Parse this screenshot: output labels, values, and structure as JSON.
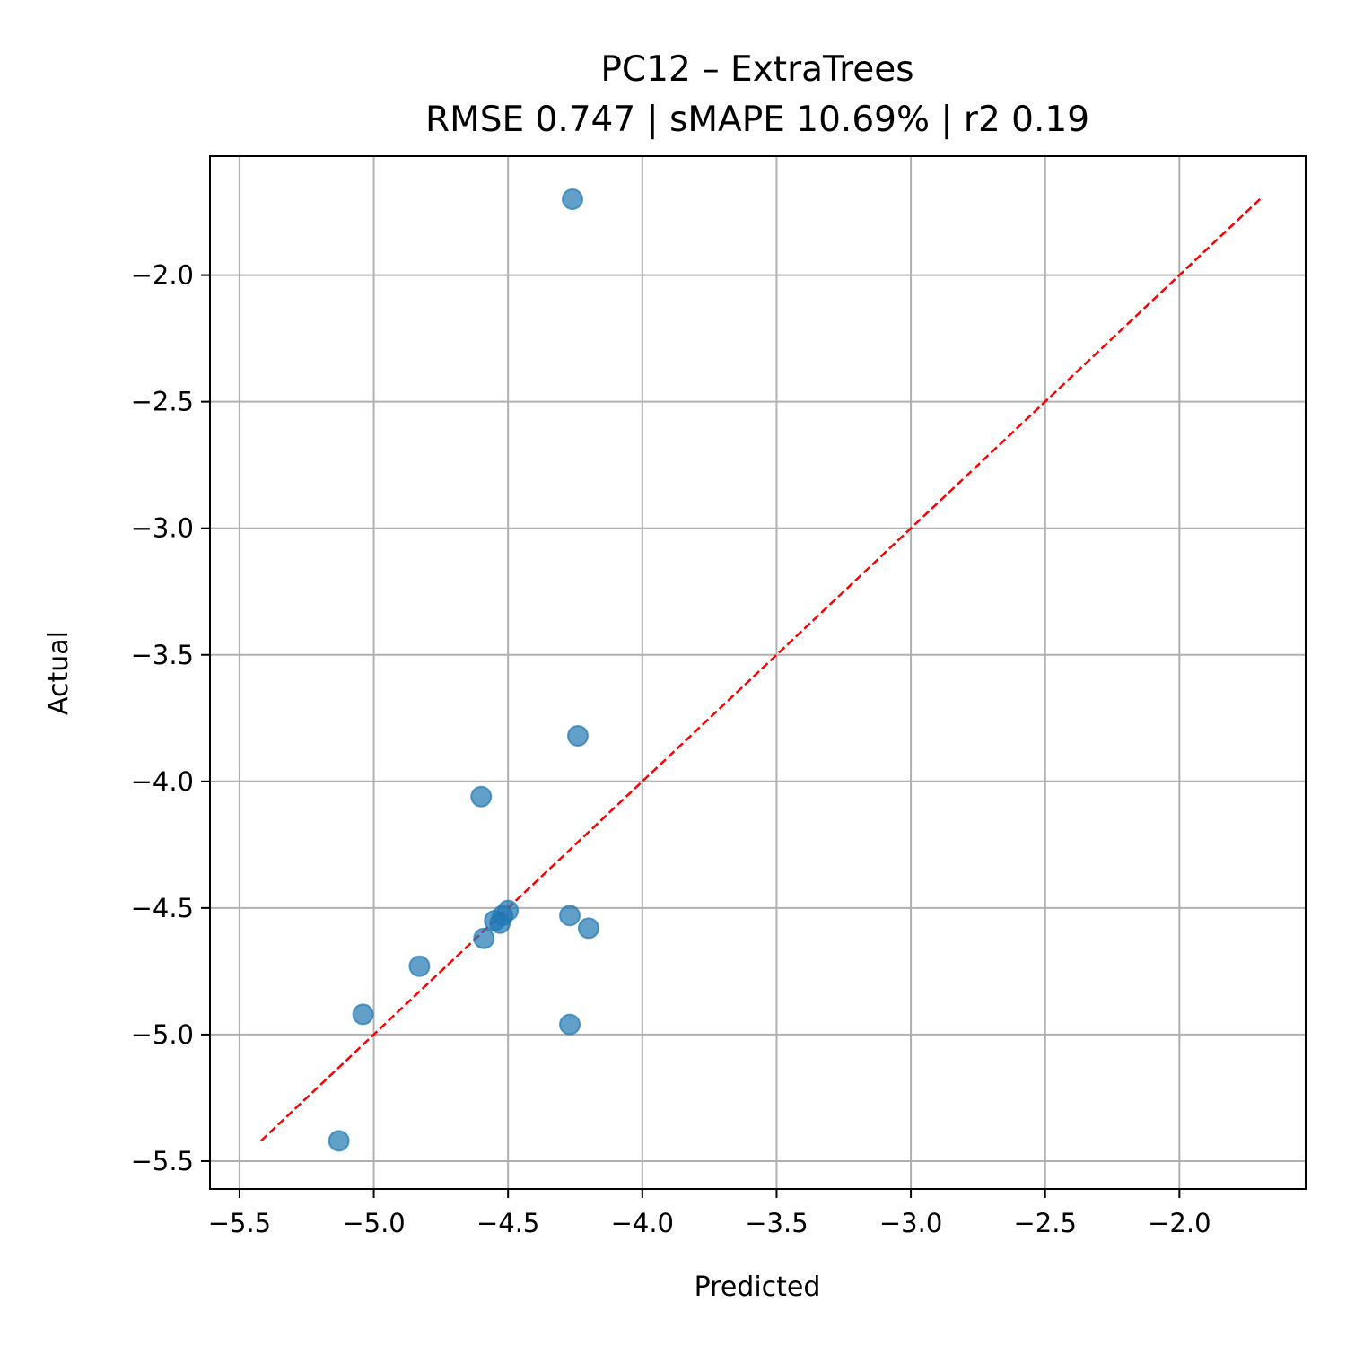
{
  "chart_data": {
    "type": "scatter",
    "title": "PC12 – ExtraTrees",
    "subtitle": "RMSE 0.747 | sMAPE 10.69%  | r2 0.19",
    "xlabel": "Predicted",
    "ylabel": "Actual",
    "xlim": [
      -5.61,
      -1.53
    ],
    "ylim": [
      -5.61,
      -1.53
    ],
    "xticks": [
      -5.5,
      -5.0,
      -4.5,
      -4.0,
      -3.5,
      -3.0,
      -2.5,
      -2.0
    ],
    "yticks": [
      -5.5,
      -5.0,
      -4.5,
      -4.0,
      -3.5,
      -3.0,
      -2.5,
      -2.0
    ],
    "xtick_labels": [
      "−5.5",
      "−5.0",
      "−4.5",
      "−4.0",
      "−3.5",
      "−3.0",
      "−2.5",
      "−2.0"
    ],
    "ytick_labels": [
      "−5.5",
      "−5.0",
      "−4.5",
      "−4.0",
      "−3.5",
      "−3.0",
      "−2.5",
      "−2.0"
    ],
    "grid": true,
    "points": {
      "x": [
        -4.26,
        -4.24,
        -4.6,
        -4.27,
        -4.2,
        -4.5,
        -4.52,
        -4.55,
        -4.53,
        -4.59,
        -4.83,
        -5.04,
        -4.27,
        -5.13
      ],
      "y": [
        -1.7,
        -3.82,
        -4.06,
        -4.53,
        -4.58,
        -4.51,
        -4.53,
        -4.55,
        -4.56,
        -4.62,
        -4.73,
        -4.92,
        -4.96,
        -5.42
      ],
      "color": "#1f77b4",
      "alpha": 0.7
    },
    "reference_line": {
      "x": [
        -5.42,
        -1.7
      ],
      "y": [
        -5.42,
        -1.7
      ],
      "color": "#ff0000",
      "style": "dashed"
    }
  }
}
